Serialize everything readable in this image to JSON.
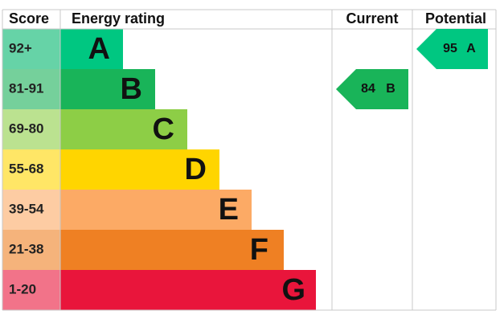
{
  "header": {
    "score": "Score",
    "rating": "Energy rating",
    "current": "Current",
    "potential": "Potential"
  },
  "bands": [
    {
      "score": "92+",
      "letter": "A"
    },
    {
      "score": "81-91",
      "letter": "B"
    },
    {
      "score": "69-80",
      "letter": "C"
    },
    {
      "score": "55-68",
      "letter": "D"
    },
    {
      "score": "39-54",
      "letter": "E"
    },
    {
      "score": "21-38",
      "letter": "F"
    },
    {
      "score": "1-20",
      "letter": "G"
    }
  ],
  "current": {
    "value": 84,
    "letter": "B"
  },
  "potential": {
    "value": 95,
    "letter": "A"
  }
}
